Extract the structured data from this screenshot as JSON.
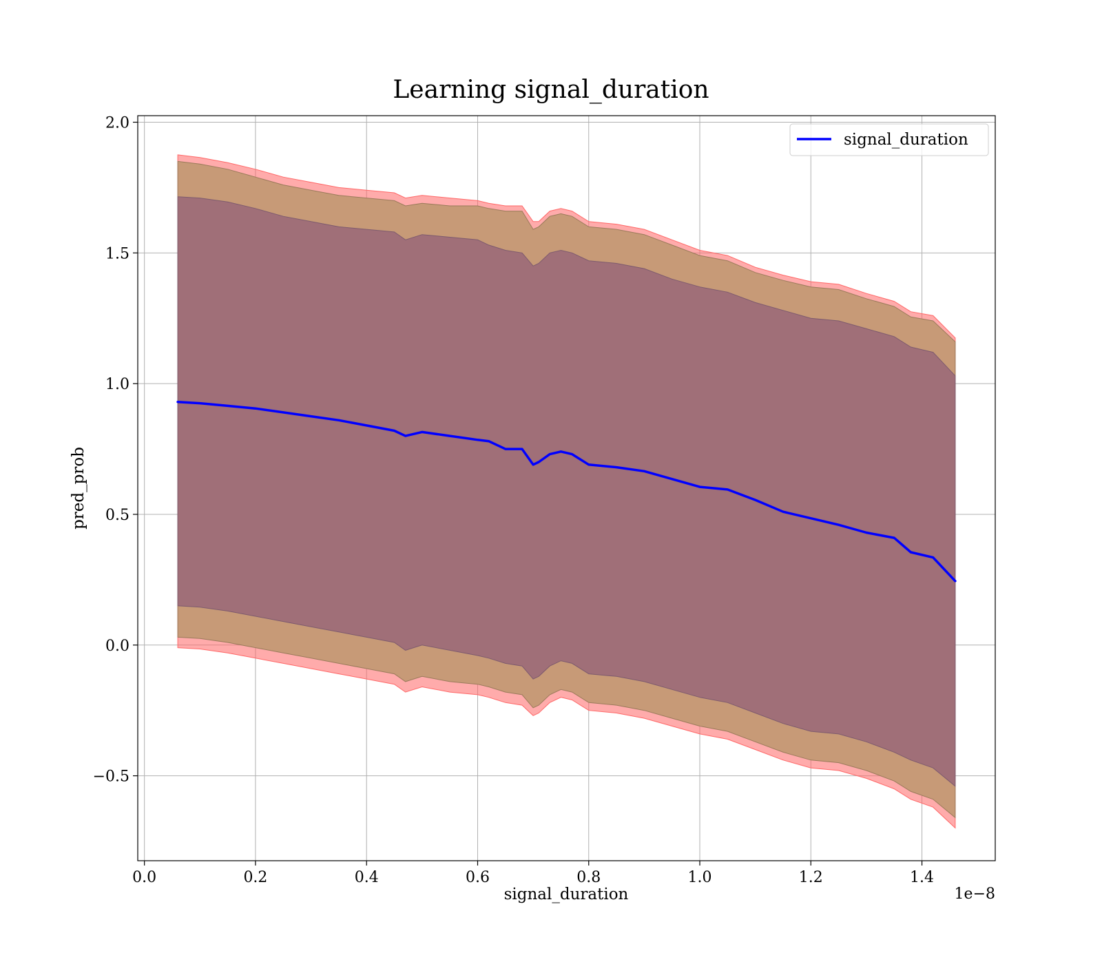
{
  "chart_data": {
    "type": "line",
    "title": "Learning signal_duration",
    "xlabel": "signal_duration",
    "ylabel": "pred_prob",
    "x_offset_label": "1e−8",
    "xlim": [
      -0.012,
      1.532
    ],
    "ylim": [
      -0.825,
      2.025
    ],
    "grid": true,
    "legend": {
      "placement": "top-right",
      "entries": [
        "signal_duration"
      ]
    },
    "x_ticks": [
      0.0,
      0.2,
      0.4,
      0.6,
      0.8,
      1.0,
      1.2,
      1.4
    ],
    "x_tick_labels": [
      "0.0",
      "0.2",
      "0.4",
      "0.6",
      "0.8",
      "1.0",
      "1.2",
      "1.4"
    ],
    "y_ticks": [
      -0.5,
      0.0,
      0.5,
      1.0,
      1.5,
      2.0
    ],
    "y_tick_labels": [
      "−0.5",
      "0.0",
      "0.5",
      "1.0",
      "1.5",
      "2.0"
    ],
    "colors": {
      "line": "#0000ff",
      "band_outer": "#ff6666",
      "band_middle": "#c79a77",
      "band_inner": "#a06f78"
    },
    "series": [
      {
        "name": "signal_duration",
        "x": [
          0.06,
          0.1,
          0.15,
          0.2,
          0.25,
          0.3,
          0.35,
          0.4,
          0.45,
          0.47,
          0.5,
          0.55,
          0.6,
          0.62,
          0.65,
          0.68,
          0.7,
          0.71,
          0.73,
          0.75,
          0.77,
          0.8,
          0.85,
          0.9,
          0.95,
          1.0,
          1.05,
          1.1,
          1.15,
          1.2,
          1.25,
          1.3,
          1.35,
          1.38,
          1.42,
          1.46
        ],
        "y": [
          0.93,
          0.925,
          0.915,
          0.905,
          0.89,
          0.875,
          0.86,
          0.84,
          0.82,
          0.8,
          0.815,
          0.8,
          0.785,
          0.78,
          0.75,
          0.75,
          0.69,
          0.7,
          0.73,
          0.74,
          0.73,
          0.69,
          0.68,
          0.665,
          0.635,
          0.605,
          0.595,
          0.555,
          0.51,
          0.485,
          0.46,
          0.43,
          0.41,
          0.355,
          0.335,
          0.245
        ],
        "bands": {
          "outer_upper": [
            1.875,
            1.865,
            1.845,
            1.82,
            1.79,
            1.77,
            1.75,
            1.74,
            1.73,
            1.71,
            1.72,
            1.71,
            1.7,
            1.69,
            1.68,
            1.68,
            1.62,
            1.62,
            1.66,
            1.67,
            1.66,
            1.62,
            1.61,
            1.59,
            1.55,
            1.51,
            1.49,
            1.445,
            1.415,
            1.39,
            1.38,
            1.345,
            1.315,
            1.275,
            1.26,
            1.175
          ],
          "middle_upper": [
            1.85,
            1.84,
            1.82,
            1.79,
            1.76,
            1.74,
            1.72,
            1.71,
            1.7,
            1.68,
            1.69,
            1.68,
            1.68,
            1.67,
            1.66,
            1.66,
            1.59,
            1.6,
            1.64,
            1.65,
            1.64,
            1.6,
            1.59,
            1.57,
            1.53,
            1.49,
            1.47,
            1.425,
            1.395,
            1.37,
            1.36,
            1.325,
            1.295,
            1.255,
            1.24,
            1.16
          ],
          "inner_upper": [
            1.715,
            1.71,
            1.695,
            1.67,
            1.64,
            1.62,
            1.6,
            1.59,
            1.58,
            1.55,
            1.57,
            1.56,
            1.55,
            1.53,
            1.51,
            1.5,
            1.45,
            1.46,
            1.5,
            1.51,
            1.5,
            1.47,
            1.46,
            1.44,
            1.4,
            1.37,
            1.35,
            1.31,
            1.28,
            1.25,
            1.24,
            1.21,
            1.18,
            1.14,
            1.12,
            1.03
          ],
          "inner_lower": [
            0.15,
            0.145,
            0.13,
            0.11,
            0.09,
            0.07,
            0.05,
            0.03,
            0.01,
            -0.02,
            0.0,
            -0.02,
            -0.04,
            -0.05,
            -0.07,
            -0.08,
            -0.13,
            -0.12,
            -0.08,
            -0.06,
            -0.07,
            -0.11,
            -0.12,
            -0.14,
            -0.17,
            -0.2,
            -0.22,
            -0.26,
            -0.3,
            -0.33,
            -0.34,
            -0.37,
            -0.41,
            -0.44,
            -0.47,
            -0.54
          ],
          "middle_lower": [
            0.03,
            0.025,
            0.01,
            -0.01,
            -0.03,
            -0.05,
            -0.07,
            -0.09,
            -0.11,
            -0.14,
            -0.12,
            -0.14,
            -0.15,
            -0.16,
            -0.18,
            -0.19,
            -0.24,
            -0.23,
            -0.19,
            -0.17,
            -0.18,
            -0.22,
            -0.23,
            -0.25,
            -0.28,
            -0.31,
            -0.33,
            -0.37,
            -0.41,
            -0.44,
            -0.45,
            -0.48,
            -0.52,
            -0.56,
            -0.59,
            -0.66
          ],
          "outer_lower": [
            -0.01,
            -0.015,
            -0.03,
            -0.05,
            -0.07,
            -0.09,
            -0.11,
            -0.13,
            -0.15,
            -0.18,
            -0.16,
            -0.18,
            -0.19,
            -0.2,
            -0.22,
            -0.23,
            -0.27,
            -0.26,
            -0.22,
            -0.2,
            -0.21,
            -0.25,
            -0.26,
            -0.28,
            -0.31,
            -0.34,
            -0.36,
            -0.4,
            -0.44,
            -0.47,
            -0.48,
            -0.51,
            -0.55,
            -0.59,
            -0.62,
            -0.7
          ]
        }
      }
    ]
  }
}
